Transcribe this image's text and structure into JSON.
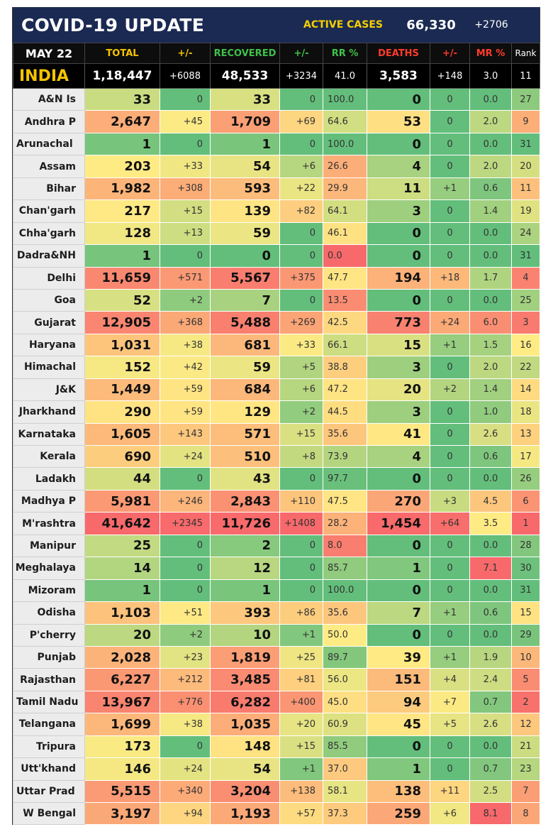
{
  "header": {
    "title": "COVID-19 UPDATE",
    "active_cases_label": "ACTIVE CASES",
    "active_cases_value": "66,330",
    "active_cases_change": "+2706"
  },
  "columns": {
    "date": "MAY 22",
    "total": "TOTAL",
    "total_change": "+/-",
    "recovered": "RECOVERED",
    "recovered_change": "+/-",
    "rr": "RR %",
    "deaths": "DEATHS",
    "deaths_change": "+/-",
    "mr": "MR %",
    "rank": "Rank"
  },
  "india": {
    "name": "INDIA",
    "total": "1,18,447",
    "total_change": "+6088",
    "recovered": "48,533",
    "recovered_change": "+3234",
    "rr": "41.0",
    "deaths": "3,583",
    "deaths_change": "+148",
    "mr": "3.0",
    "rank": "11"
  },
  "colors": {
    "header_navy": "#1b2a52",
    "accent_yellow": "#f5c400",
    "green_dark": "#66c06e",
    "yellow_light": "#fff0a0",
    "orange": "#fdb96a",
    "red": "#f46a63"
  },
  "rows": [
    {
      "name": "A&N Is",
      "total": "33",
      "total_change": "0",
      "recovered": "33",
      "recovered_change": "0",
      "rr": "100.0",
      "deaths": "0",
      "deaths_change": "0",
      "mr": "0.0",
      "rank": "27"
    },
    {
      "name": "Andhra P",
      "total": "2,647",
      "total_change": "+45",
      "recovered": "1,709",
      "recovered_change": "+69",
      "rr": "64.6",
      "deaths": "53",
      "deaths_change": "0",
      "mr": "2.0",
      "rank": "9"
    },
    {
      "name": "Arunachal",
      "total": "1",
      "total_change": "0",
      "recovered": "1",
      "recovered_change": "0",
      "rr": "100.0",
      "deaths": "0",
      "deaths_change": "0",
      "mr": "0.0",
      "rank": "31"
    },
    {
      "name": "Assam",
      "total": "203",
      "total_change": "+33",
      "recovered": "54",
      "recovered_change": "+6",
      "rr": "26.6",
      "deaths": "4",
      "deaths_change": "0",
      "mr": "2.0",
      "rank": "20"
    },
    {
      "name": "Bihar",
      "total": "1,982",
      "total_change": "+308",
      "recovered": "593",
      "recovered_change": "+22",
      "rr": "29.9",
      "deaths": "11",
      "deaths_change": "+1",
      "mr": "0.6",
      "rank": "11"
    },
    {
      "name": "Chan'garh",
      "total": "217",
      "total_change": "+15",
      "recovered": "139",
      "recovered_change": "+82",
      "rr": "64.1",
      "deaths": "3",
      "deaths_change": "0",
      "mr": "1.4",
      "rank": "19"
    },
    {
      "name": "Chha'garh",
      "total": "128",
      "total_change": "+13",
      "recovered": "59",
      "recovered_change": "0",
      "rr": "46.1",
      "deaths": "0",
      "deaths_change": "0",
      "mr": "0.0",
      "rank": "24"
    },
    {
      "name": "Dadra&NH",
      "total": "1",
      "total_change": "0",
      "recovered": "0",
      "recovered_change": "0",
      "rr": "0.0",
      "deaths": "0",
      "deaths_change": "0",
      "mr": "0.0",
      "rank": "31"
    },
    {
      "name": "Delhi",
      "total": "11,659",
      "total_change": "+571",
      "recovered": "5,567",
      "recovered_change": "+375",
      "rr": "47.7",
      "deaths": "194",
      "deaths_change": "+18",
      "mr": "1.7",
      "rank": "4"
    },
    {
      "name": "Goa",
      "total": "52",
      "total_change": "+2",
      "recovered": "7",
      "recovered_change": "0",
      "rr": "13.5",
      "deaths": "0",
      "deaths_change": "0",
      "mr": "0.0",
      "rank": "25"
    },
    {
      "name": "Gujarat",
      "total": "12,905",
      "total_change": "+368",
      "recovered": "5,488",
      "recovered_change": "+269",
      "rr": "42.5",
      "deaths": "773",
      "deaths_change": "+24",
      "mr": "6.0",
      "rank": "3"
    },
    {
      "name": "Haryana",
      "total": "1,031",
      "total_change": "+38",
      "recovered": "681",
      "recovered_change": "+33",
      "rr": "66.1",
      "deaths": "15",
      "deaths_change": "+1",
      "mr": "1.5",
      "rank": "16"
    },
    {
      "name": "Himachal",
      "total": "152",
      "total_change": "+42",
      "recovered": "59",
      "recovered_change": "+5",
      "rr": "38.8",
      "deaths": "3",
      "deaths_change": "0",
      "mr": "2.0",
      "rank": "22"
    },
    {
      "name": "J&K",
      "total": "1,449",
      "total_change": "+59",
      "recovered": "684",
      "recovered_change": "+6",
      "rr": "47.2",
      "deaths": "20",
      "deaths_change": "+2",
      "mr": "1.4",
      "rank": "14"
    },
    {
      "name": "Jharkhand",
      "total": "290",
      "total_change": "+59",
      "recovered": "129",
      "recovered_change": "+2",
      "rr": "44.5",
      "deaths": "3",
      "deaths_change": "0",
      "mr": "1.0",
      "rank": "18"
    },
    {
      "name": "Karnataka",
      "total": "1,605",
      "total_change": "+143",
      "recovered": "571",
      "recovered_change": "+15",
      "rr": "35.6",
      "deaths": "41",
      "deaths_change": "0",
      "mr": "2.6",
      "rank": "13"
    },
    {
      "name": "Kerala",
      "total": "690",
      "total_change": "+24",
      "recovered": "510",
      "recovered_change": "+8",
      "rr": "73.9",
      "deaths": "4",
      "deaths_change": "0",
      "mr": "0.6",
      "rank": "17"
    },
    {
      "name": "Ladakh",
      "total": "44",
      "total_change": "0",
      "recovered": "43",
      "recovered_change": "0",
      "rr": "97.7",
      "deaths": "0",
      "deaths_change": "0",
      "mr": "0.0",
      "rank": "26"
    },
    {
      "name": "Madhya P",
      "total": "5,981",
      "total_change": "+246",
      "recovered": "2,843",
      "recovered_change": "+110",
      "rr": "47.5",
      "deaths": "270",
      "deaths_change": "+3",
      "mr": "4.5",
      "rank": "6"
    },
    {
      "name": "M'rashtra",
      "total": "41,642",
      "total_change": "+2345",
      "recovered": "11,726",
      "recovered_change": "+1408",
      "rr": "28.2",
      "deaths": "1,454",
      "deaths_change": "+64",
      "mr": "3.5",
      "rank": "1"
    },
    {
      "name": "Manipur",
      "total": "25",
      "total_change": "0",
      "recovered": "2",
      "recovered_change": "0",
      "rr": "8.0",
      "deaths": "0",
      "deaths_change": "0",
      "mr": "0.0",
      "rank": "28"
    },
    {
      "name": "Meghalaya",
      "total": "14",
      "total_change": "0",
      "recovered": "12",
      "recovered_change": "0",
      "rr": "85.7",
      "deaths": "1",
      "deaths_change": "0",
      "mr": "7.1",
      "rank": "30"
    },
    {
      "name": "Mizoram",
      "total": "1",
      "total_change": "0",
      "recovered": "1",
      "recovered_change": "0",
      "rr": "100.0",
      "deaths": "0",
      "deaths_change": "0",
      "mr": "0.0",
      "rank": "31"
    },
    {
      "name": "Odisha",
      "total": "1,103",
      "total_change": "+51",
      "recovered": "393",
      "recovered_change": "+86",
      "rr": "35.6",
      "deaths": "7",
      "deaths_change": "+1",
      "mr": "0.6",
      "rank": "15"
    },
    {
      "name": "P'cherry",
      "total": "20",
      "total_change": "+2",
      "recovered": "10",
      "recovered_change": "+1",
      "rr": "50.0",
      "deaths": "0",
      "deaths_change": "0",
      "mr": "0.0",
      "rank": "29"
    },
    {
      "name": "Punjab",
      "total": "2,028",
      "total_change": "+23",
      "recovered": "1,819",
      "recovered_change": "+25",
      "rr": "89.7",
      "deaths": "39",
      "deaths_change": "+1",
      "mr": "1.9",
      "rank": "10"
    },
    {
      "name": "Rajasthan",
      "total": "6,227",
      "total_change": "+212",
      "recovered": "3,485",
      "recovered_change": "+81",
      "rr": "56.0",
      "deaths": "151",
      "deaths_change": "+4",
      "mr": "2.4",
      "rank": "5"
    },
    {
      "name": "Tamil Nadu",
      "total": "13,967",
      "total_change": "+776",
      "recovered": "6,282",
      "recovered_change": "+400",
      "rr": "45.0",
      "deaths": "94",
      "deaths_change": "+7",
      "mr": "0.7",
      "rank": "2"
    },
    {
      "name": "Telangana",
      "total": "1,699",
      "total_change": "+38",
      "recovered": "1,035",
      "recovered_change": "+20",
      "rr": "60.9",
      "deaths": "45",
      "deaths_change": "+5",
      "mr": "2.6",
      "rank": "12"
    },
    {
      "name": "Tripura",
      "total": "173",
      "total_change": "0",
      "recovered": "148",
      "recovered_change": "+15",
      "rr": "85.5",
      "deaths": "0",
      "deaths_change": "0",
      "mr": "0.0",
      "rank": "21"
    },
    {
      "name": "Utt'khand",
      "total": "146",
      "total_change": "+24",
      "recovered": "54",
      "recovered_change": "+1",
      "rr": "37.0",
      "deaths": "1",
      "deaths_change": "0",
      "mr": "0.7",
      "rank": "23"
    },
    {
      "name": "Uttar Prad",
      "total": "5,515",
      "total_change": "+340",
      "recovered": "3,204",
      "recovered_change": "+138",
      "rr": "58.1",
      "deaths": "138",
      "deaths_change": "+11",
      "mr": "2.5",
      "rank": "7"
    },
    {
      "name": "W Bengal",
      "total": "3,197",
      "total_change": "+94",
      "recovered": "1,193",
      "recovered_change": "+57",
      "rr": "37.3",
      "deaths": "259",
      "deaths_change": "+6",
      "mr": "8.1",
      "rank": "8"
    }
  ]
}
